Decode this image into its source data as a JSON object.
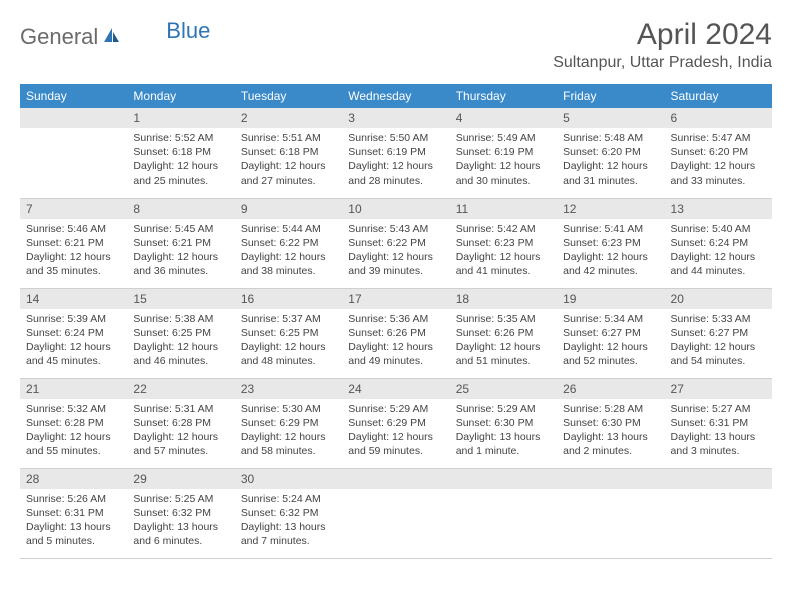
{
  "logo": {
    "text1": "General",
    "text2": "Blue"
  },
  "title": "April 2024",
  "location": "Sultanpur, Uttar Pradesh, India",
  "colors": {
    "header_bg": "#3a8ac9",
    "header_text": "#ffffff",
    "daynum_bg": "#e8e8e8",
    "text": "#444444",
    "title_text": "#555555",
    "logo_gray": "#6b6b6b",
    "logo_blue": "#2e75b6",
    "border": "#d0d0d0"
  },
  "weekdays": [
    "Sunday",
    "Monday",
    "Tuesday",
    "Wednesday",
    "Thursday",
    "Friday",
    "Saturday"
  ],
  "weeks": [
    [
      {
        "day": "",
        "sunrise": "",
        "sunset": "",
        "daylight": ""
      },
      {
        "day": "1",
        "sunrise": "Sunrise: 5:52 AM",
        "sunset": "Sunset: 6:18 PM",
        "daylight": "Daylight: 12 hours and 25 minutes."
      },
      {
        "day": "2",
        "sunrise": "Sunrise: 5:51 AM",
        "sunset": "Sunset: 6:18 PM",
        "daylight": "Daylight: 12 hours and 27 minutes."
      },
      {
        "day": "3",
        "sunrise": "Sunrise: 5:50 AM",
        "sunset": "Sunset: 6:19 PM",
        "daylight": "Daylight: 12 hours and 28 minutes."
      },
      {
        "day": "4",
        "sunrise": "Sunrise: 5:49 AM",
        "sunset": "Sunset: 6:19 PM",
        "daylight": "Daylight: 12 hours and 30 minutes."
      },
      {
        "day": "5",
        "sunrise": "Sunrise: 5:48 AM",
        "sunset": "Sunset: 6:20 PM",
        "daylight": "Daylight: 12 hours and 31 minutes."
      },
      {
        "day": "6",
        "sunrise": "Sunrise: 5:47 AM",
        "sunset": "Sunset: 6:20 PM",
        "daylight": "Daylight: 12 hours and 33 minutes."
      }
    ],
    [
      {
        "day": "7",
        "sunrise": "Sunrise: 5:46 AM",
        "sunset": "Sunset: 6:21 PM",
        "daylight": "Daylight: 12 hours and 35 minutes."
      },
      {
        "day": "8",
        "sunrise": "Sunrise: 5:45 AM",
        "sunset": "Sunset: 6:21 PM",
        "daylight": "Daylight: 12 hours and 36 minutes."
      },
      {
        "day": "9",
        "sunrise": "Sunrise: 5:44 AM",
        "sunset": "Sunset: 6:22 PM",
        "daylight": "Daylight: 12 hours and 38 minutes."
      },
      {
        "day": "10",
        "sunrise": "Sunrise: 5:43 AM",
        "sunset": "Sunset: 6:22 PM",
        "daylight": "Daylight: 12 hours and 39 minutes."
      },
      {
        "day": "11",
        "sunrise": "Sunrise: 5:42 AM",
        "sunset": "Sunset: 6:23 PM",
        "daylight": "Daylight: 12 hours and 41 minutes."
      },
      {
        "day": "12",
        "sunrise": "Sunrise: 5:41 AM",
        "sunset": "Sunset: 6:23 PM",
        "daylight": "Daylight: 12 hours and 42 minutes."
      },
      {
        "day": "13",
        "sunrise": "Sunrise: 5:40 AM",
        "sunset": "Sunset: 6:24 PM",
        "daylight": "Daylight: 12 hours and 44 minutes."
      }
    ],
    [
      {
        "day": "14",
        "sunrise": "Sunrise: 5:39 AM",
        "sunset": "Sunset: 6:24 PM",
        "daylight": "Daylight: 12 hours and 45 minutes."
      },
      {
        "day": "15",
        "sunrise": "Sunrise: 5:38 AM",
        "sunset": "Sunset: 6:25 PM",
        "daylight": "Daylight: 12 hours and 46 minutes."
      },
      {
        "day": "16",
        "sunrise": "Sunrise: 5:37 AM",
        "sunset": "Sunset: 6:25 PM",
        "daylight": "Daylight: 12 hours and 48 minutes."
      },
      {
        "day": "17",
        "sunrise": "Sunrise: 5:36 AM",
        "sunset": "Sunset: 6:26 PM",
        "daylight": "Daylight: 12 hours and 49 minutes."
      },
      {
        "day": "18",
        "sunrise": "Sunrise: 5:35 AM",
        "sunset": "Sunset: 6:26 PM",
        "daylight": "Daylight: 12 hours and 51 minutes."
      },
      {
        "day": "19",
        "sunrise": "Sunrise: 5:34 AM",
        "sunset": "Sunset: 6:27 PM",
        "daylight": "Daylight: 12 hours and 52 minutes."
      },
      {
        "day": "20",
        "sunrise": "Sunrise: 5:33 AM",
        "sunset": "Sunset: 6:27 PM",
        "daylight": "Daylight: 12 hours and 54 minutes."
      }
    ],
    [
      {
        "day": "21",
        "sunrise": "Sunrise: 5:32 AM",
        "sunset": "Sunset: 6:28 PM",
        "daylight": "Daylight: 12 hours and 55 minutes."
      },
      {
        "day": "22",
        "sunrise": "Sunrise: 5:31 AM",
        "sunset": "Sunset: 6:28 PM",
        "daylight": "Daylight: 12 hours and 57 minutes."
      },
      {
        "day": "23",
        "sunrise": "Sunrise: 5:30 AM",
        "sunset": "Sunset: 6:29 PM",
        "daylight": "Daylight: 12 hours and 58 minutes."
      },
      {
        "day": "24",
        "sunrise": "Sunrise: 5:29 AM",
        "sunset": "Sunset: 6:29 PM",
        "daylight": "Daylight: 12 hours and 59 minutes."
      },
      {
        "day": "25",
        "sunrise": "Sunrise: 5:29 AM",
        "sunset": "Sunset: 6:30 PM",
        "daylight": "Daylight: 13 hours and 1 minute."
      },
      {
        "day": "26",
        "sunrise": "Sunrise: 5:28 AM",
        "sunset": "Sunset: 6:30 PM",
        "daylight": "Daylight: 13 hours and 2 minutes."
      },
      {
        "day": "27",
        "sunrise": "Sunrise: 5:27 AM",
        "sunset": "Sunset: 6:31 PM",
        "daylight": "Daylight: 13 hours and 3 minutes."
      }
    ],
    [
      {
        "day": "28",
        "sunrise": "Sunrise: 5:26 AM",
        "sunset": "Sunset: 6:31 PM",
        "daylight": "Daylight: 13 hours and 5 minutes."
      },
      {
        "day": "29",
        "sunrise": "Sunrise: 5:25 AM",
        "sunset": "Sunset: 6:32 PM",
        "daylight": "Daylight: 13 hours and 6 minutes."
      },
      {
        "day": "30",
        "sunrise": "Sunrise: 5:24 AM",
        "sunset": "Sunset: 6:32 PM",
        "daylight": "Daylight: 13 hours and 7 minutes."
      },
      {
        "day": "",
        "sunrise": "",
        "sunset": "",
        "daylight": ""
      },
      {
        "day": "",
        "sunrise": "",
        "sunset": "",
        "daylight": ""
      },
      {
        "day": "",
        "sunrise": "",
        "sunset": "",
        "daylight": ""
      },
      {
        "day": "",
        "sunrise": "",
        "sunset": "",
        "daylight": ""
      }
    ]
  ]
}
